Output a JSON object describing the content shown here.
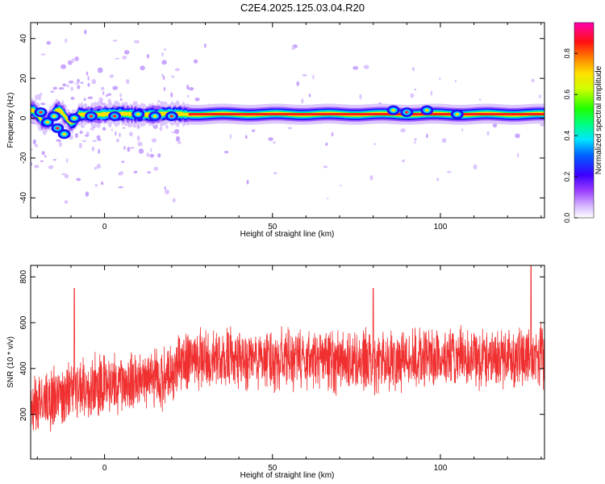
{
  "figure_title": "C2E4.2025.125.03.04.R20",
  "colors": {
    "signal_line": "#f03030",
    "spectrogram_background": "#ffffff",
    "colormap": [
      "#ffffff",
      "#c9a6ff",
      "#8a2be2",
      "#0000ff",
      "#00e5ff",
      "#00ff40",
      "#ffff00",
      "#ff8000",
      "#ff0000",
      "#ff00a0"
    ]
  },
  "chart_data": [
    {
      "id": "spectrogram",
      "type": "heatmap",
      "title": "",
      "xlabel": "Height of straight line (km)",
      "ylabel": "Frequency (Hz)",
      "xlim": [
        -22,
        131
      ],
      "ylim": [
        -50,
        48
      ],
      "xticks": [
        0,
        50,
        100
      ],
      "yticks": [
        -40,
        -20,
        0,
        20,
        40
      ],
      "colorbar": {
        "label": "Normalized spectral amplitude",
        "range": [
          0.0,
          0.95
        ],
        "ticks": [
          0.0,
          0.2,
          0.4,
          0.6,
          0.8
        ],
        "tick_labels": [
          "0.0",
          "0.2",
          "0.4",
          "0.6",
          "0.8"
        ]
      },
      "features": {
        "main_band_frequency_hz": 2,
        "band_half_width_hz": 2,
        "strong_amplitude_from_km": 25,
        "strong_amplitude_to_km": 131,
        "scatter_region_km": [
          -22,
          -8
        ],
        "scatter_frequency_range_hz": [
          -10,
          8
        ]
      }
    },
    {
      "id": "snr",
      "type": "line",
      "title": "",
      "xlabel": "Height of straight line (km)",
      "ylabel": "SNR (10 * v/v)",
      "xlim": [
        -22,
        131
      ],
      "ylim": [
        5,
        850
      ],
      "xticks": [
        0,
        50,
        100
      ],
      "yticks": [
        200,
        400,
        600,
        800
      ],
      "trend_points": [
        {
          "x": -22,
          "y": 230
        },
        {
          "x": -10,
          "y": 310
        },
        {
          "x": 0,
          "y": 330
        },
        {
          "x": 10,
          "y": 340
        },
        {
          "x": 20,
          "y": 360
        },
        {
          "x": 22,
          "y": 430
        },
        {
          "x": 50,
          "y": 440
        },
        {
          "x": 80,
          "y": 435
        },
        {
          "x": 100,
          "y": 445
        },
        {
          "x": 131,
          "y": 455
        }
      ],
      "noise_amplitude": 120,
      "peaks": [
        {
          "x": -9,
          "y": 750
        },
        {
          "x": 80,
          "y": 750
        },
        {
          "x": 127,
          "y": 850
        }
      ]
    }
  ]
}
